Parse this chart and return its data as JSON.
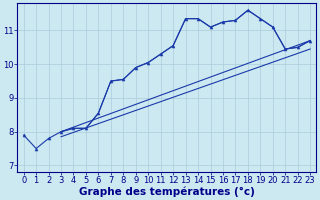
{
  "xlabel": "Graphe des températures (°c)",
  "xlim": [
    -0.5,
    23.5
  ],
  "ylim": [
    6.8,
    11.8
  ],
  "yticks": [
    7,
    8,
    9,
    10,
    11
  ],
  "xticks": [
    0,
    1,
    2,
    3,
    4,
    5,
    6,
    7,
    8,
    9,
    10,
    11,
    12,
    13,
    14,
    15,
    16,
    17,
    18,
    19,
    20,
    21,
    22,
    23
  ],
  "background_color": "#cce8f0",
  "grid_color": "#aaccdd",
  "line_color": "#1a3aaa",
  "font_color": "#00008b",
  "tick_fontsize": 6.0,
  "label_fontsize": 7.5,
  "series1_x": [
    0,
    1,
    2,
    3,
    4,
    5,
    6,
    7,
    8,
    9,
    10,
    11,
    12,
    13,
    14,
    15,
    16,
    17,
    18,
    19,
    20,
    21,
    22,
    23
  ],
  "series1_y": [
    7.9,
    7.5,
    7.8,
    8.0,
    8.1,
    8.1,
    8.55,
    9.5,
    9.55,
    9.9,
    10.05,
    10.3,
    10.55,
    11.35,
    11.35,
    11.1,
    11.25,
    11.3,
    11.6,
    11.35,
    11.1,
    10.45,
    10.5,
    10.7
  ],
  "series2_x": [
    3,
    4,
    5,
    6,
    7,
    8,
    9,
    10,
    11,
    12,
    13,
    14,
    15,
    16,
    17,
    18,
    19,
    20,
    21,
    22,
    23
  ],
  "series2_y": [
    8.0,
    8.1,
    8.1,
    8.55,
    9.5,
    9.55,
    9.9,
    10.05,
    10.3,
    10.55,
    11.35,
    11.35,
    11.1,
    11.25,
    11.3,
    11.6,
    11.35,
    11.1,
    10.45,
    10.5,
    10.7
  ],
  "series3_x": [
    3,
    23
  ],
  "series3_y": [
    8.0,
    10.7
  ],
  "series4_x": [
    3,
    23
  ],
  "series4_y": [
    7.85,
    10.45
  ]
}
